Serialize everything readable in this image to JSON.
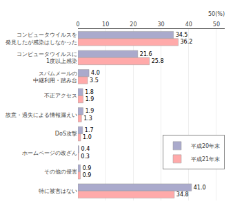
{
  "chart_data": {
    "type": "bar",
    "orientation": "horizontal",
    "categories": [
      "コンピュータウイルスを\n発見したが感染はしなかった",
      "コンピュータウイルスに\n1度以上感染",
      "スパムメールの\n中継利用・踏み台",
      "不正アクセス",
      "故意・過失による情報漏えい",
      "DoS攻撃",
      "ホームページの改ざん",
      "その他の侵害",
      "特に被害はない"
    ],
    "series": [
      {
        "name": "平成20年末",
        "color": "#aaaacc",
        "values": [
          34.5,
          21.6,
          4.0,
          1.8,
          1.9,
          1.7,
          0.4,
          0.9,
          41.0
        ],
        "value_labels": [
          "34.5",
          "21.6",
          "4.0",
          "1.8",
          "1.9",
          "1.7",
          "0.4",
          "0.9",
          "41.0"
        ]
      },
      {
        "name": "平成21年末",
        "color": "#ffaaaa",
        "values": [
          36.2,
          25.8,
          3.5,
          1.9,
          1.3,
          1.0,
          0.3,
          0.9,
          34.8
        ],
        "value_labels": [
          "36.2",
          "25.8",
          "3.5",
          "1.9",
          "1.3",
          "1.0",
          "0.3",
          "0.9",
          "34.8"
        ]
      }
    ],
    "xlim": [
      0,
      53
    ],
    "xticks": [
      0,
      10,
      20,
      30,
      40,
      50
    ],
    "annotations": [
      {
        "text": "50(%)",
        "x": 50
      }
    ],
    "data_labels": true,
    "grid": true,
    "legend": "lower right"
  }
}
